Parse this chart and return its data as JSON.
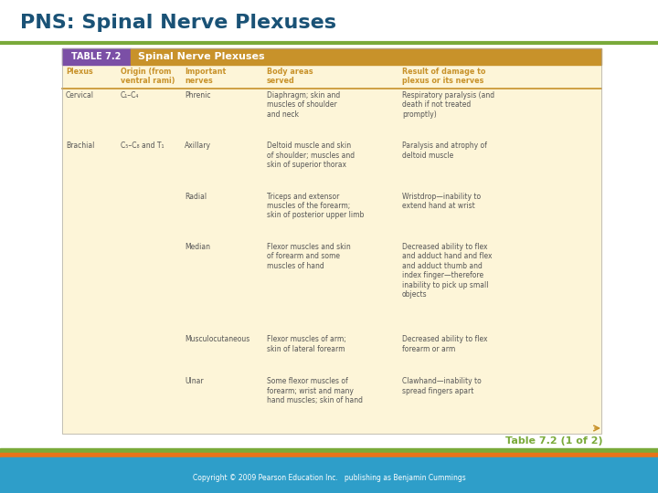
{
  "title": "PNS: Spinal Nerve Plexuses",
  "title_color": "#1a5276",
  "title_fontsize": 16,
  "table_header_left": "TABLE 7.2",
  "table_header_right": "Spinal Nerve Plexuses",
  "table_header_bg_left": "#7b4fa6",
  "table_header_bg_right": "#c8922a",
  "col_headers": [
    "Plexus",
    "Origin (from\nventral rami)",
    "Important\nnerves",
    "Body areas\nserved",
    "Result of damage to\nplexus or its nerves"
  ],
  "col_header_color": "#c8922a",
  "col_header_fontsize": 5.8,
  "table_bg": "#fdf5d8",
  "separator_line_color": "#c8922a",
  "rows": [
    [
      "Cervical",
      "C₁–C₄",
      "Phrenic",
      "Diaphragm; skin and\nmuscles of shoulder\nand neck",
      "Respiratory paralysis (and\ndeath if not treated\npromptly)"
    ],
    [
      "Brachial",
      "C₅–C₈ and T₁",
      "Axillary",
      "Deltoid muscle and skin\nof shoulder; muscles and\nskin of superior thorax",
      "Paralysis and atrophy of\ndeltoid muscle"
    ],
    [
      "",
      "",
      "Radial",
      "Triceps and extensor\nmuscles of the forearm;\nskin of posterior upper limb",
      "Wristdrop—inability to\nextend hand at wrist"
    ],
    [
      "",
      "",
      "Median",
      "Flexor muscles and skin\nof forearm and some\nmuscles of hand",
      "Decreased ability to flex\nand adduct hand and flex\nand adduct thumb and\nindex finger—therefore\ninability to pick up small\nobjects"
    ],
    [
      "",
      "",
      "Musculocutaneous",
      "Flexor muscles of arm;\nskin of lateral forearm",
      "Decreased ability to flex\nforearm or arm"
    ],
    [
      "",
      "",
      "Ulnar",
      "Some flexor muscles of\nforearm; wrist and many\nhand muscles; skin of hand",
      "Clawhand—inability to\nspread fingers apart"
    ]
  ],
  "row_text_color": "#555555",
  "row_fontsize": 5.5,
  "footer_text": "Table 7.2 (1 of 2)",
  "footer_color": "#7aaa3a",
  "footer_fontsize": 8,
  "copyright_text": "Copyright © 2009 Pearson Education Inc.   publishing as Benjamin Cummings",
  "copyright_color": "#ffffff",
  "copyright_fontsize": 5.5,
  "green_bar_color": "#7aaa3a",
  "orange_bar_color": "#e8741a",
  "blue_bar_color": "#2e9ec9",
  "bottom_blue_bg": "#2e9ec9",
  "green_line_color": "#7aaa3a",
  "arrow_color": "#c8922a"
}
